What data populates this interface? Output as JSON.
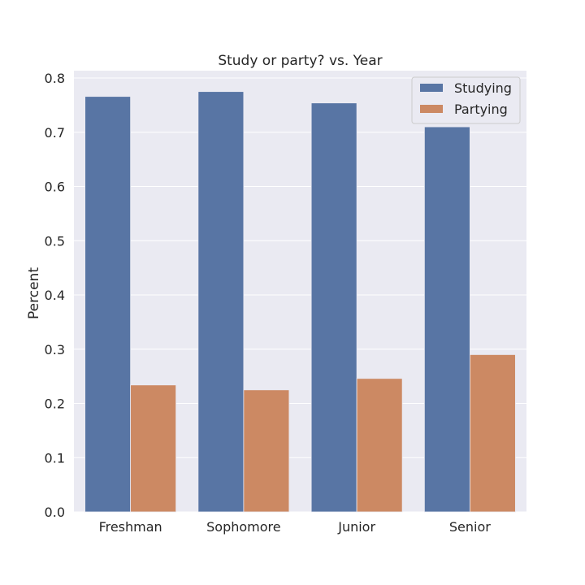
{
  "chart_data": {
    "type": "bar",
    "title": "Study or party? vs. Year",
    "xlabel": "",
    "ylabel": "Percent",
    "categories": [
      "Freshman",
      "Sophomore",
      "Junior",
      "Senior"
    ],
    "series": [
      {
        "name": "Studying",
        "color": "#5875a4",
        "values": [
          0.766,
          0.775,
          0.754,
          0.71
        ]
      },
      {
        "name": "Partying",
        "color": "#cc8963",
        "values": [
          0.234,
          0.225,
          0.246,
          0.29
        ]
      }
    ],
    "ylim": [
      0,
      0.8
    ],
    "yticks": [
      "0.0",
      "0.1",
      "0.2",
      "0.3",
      "0.4",
      "0.5",
      "0.6",
      "0.7",
      "0.8"
    ],
    "grid": true,
    "legend_position": "top-right",
    "background": "#eaeaf2"
  }
}
